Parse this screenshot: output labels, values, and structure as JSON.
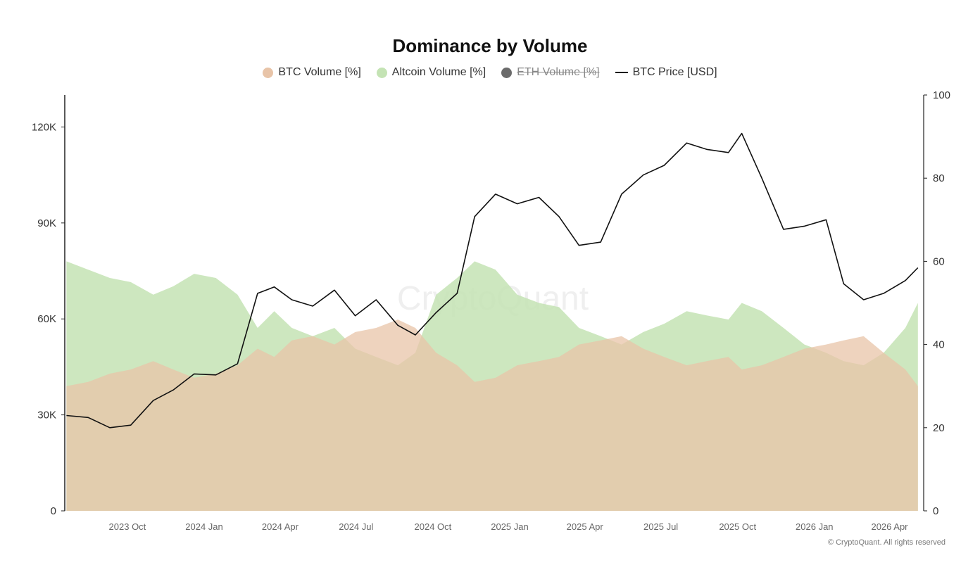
{
  "chart_data": {
    "type": "area",
    "title": "Dominance by Volume",
    "watermark": "CryptoQuant",
    "credit": "© CryptoQuant. All rights reserved",
    "legend": [
      {
        "key": "btc_volume",
        "label": "BTC Volume [%]",
        "color": "#e8c4a8",
        "hidden": false
      },
      {
        "key": "altcoin_volume",
        "label": "Altcoin Volume [%]",
        "color": "#c4e3b4",
        "hidden": false
      },
      {
        "key": "eth_volume",
        "label": "ETH Volume [%]",
        "color": "#6b6b6b",
        "hidden": true
      },
      {
        "key": "btc_price",
        "label": "BTC Price [USD]",
        "color": "#111111",
        "hidden": false
      }
    ],
    "left_axis": {
      "ylim": [
        0,
        130000
      ],
      "ticks": [
        0,
        30000,
        60000,
        90000,
        120000
      ],
      "tick_labels": [
        "0",
        "30K",
        "60K",
        "90K",
        "120K"
      ]
    },
    "right_axis": {
      "ylim": [
        0,
        100
      ],
      "ticks": [
        0,
        20,
        40,
        60,
        80,
        100
      ],
      "tick_labels": [
        "0",
        "20",
        "40",
        "60",
        "80",
        "100"
      ]
    },
    "x_axis": {
      "xlim": [
        "2023-07-18",
        "2026-05-06"
      ],
      "ticks": [
        "2023-10-01",
        "2024-01-01",
        "2024-04-01",
        "2024-07-01",
        "2024-10-01",
        "2025-01-01",
        "2025-04-01",
        "2025-07-01",
        "2025-10-01",
        "2026-01-01",
        "2026-04-01"
      ],
      "tick_labels": [
        "2023 Oct",
        "2024 Jan",
        "2024 Apr",
        "2024 Jul",
        "2024 Oct",
        "2025 Jan",
        "2025 Apr",
        "2025 Jul",
        "2025 Oct",
        "2026 Jan",
        "2026 Apr"
      ]
    },
    "x": [
      "2023-07-20",
      "2023-08-15",
      "2023-09-10",
      "2023-10-05",
      "2023-11-01",
      "2023-11-25",
      "2023-12-20",
      "2024-01-15",
      "2024-02-10",
      "2024-03-05",
      "2024-03-25",
      "2024-04-15",
      "2024-05-10",
      "2024-06-05",
      "2024-06-30",
      "2024-07-25",
      "2024-08-20",
      "2024-09-10",
      "2024-10-05",
      "2024-10-30",
      "2024-11-20",
      "2024-12-15",
      "2025-01-10",
      "2025-02-05",
      "2025-03-01",
      "2025-03-25",
      "2025-04-20",
      "2025-05-15",
      "2025-06-10",
      "2025-07-05",
      "2025-08-01",
      "2025-08-25",
      "2025-09-20",
      "2025-10-06",
      "2025-10-30",
      "2025-11-25",
      "2025-12-20",
      "2026-01-15",
      "2026-02-05",
      "2026-03-01",
      "2026-03-25",
      "2026-04-20",
      "2026-05-05"
    ],
    "series": [
      {
        "name": "BTC Price [USD]",
        "axis": "left",
        "values": [
          29800,
          29200,
          26000,
          26800,
          34500,
          37800,
          42800,
          42500,
          46000,
          68000,
          70000,
          66000,
          64000,
          69000,
          61000,
          66000,
          58000,
          55000,
          62000,
          68000,
          92000,
          99000,
          96000,
          98000,
          92000,
          83000,
          84000,
          99000,
          105000,
          108000,
          115000,
          113000,
          112000,
          118000,
          104000,
          88000,
          89000,
          91000,
          71000,
          66000,
          68000,
          72000,
          76000
        ]
      },
      {
        "name": "Altcoin Volume [%]",
        "axis": "right",
        "values": [
          60,
          58,
          56,
          55,
          52,
          54,
          57,
          56,
          52,
          44,
          48,
          44,
          42,
          44,
          39,
          37,
          35,
          38,
          52,
          56,
          60,
          58,
          52,
          50,
          49,
          44,
          42,
          40,
          43,
          45,
          48,
          47,
          46,
          50,
          48,
          44,
          40,
          38,
          36,
          35,
          38,
          44,
          50
        ]
      },
      {
        "name": "BTC Volume [%]",
        "axis": "right",
        "values": [
          30,
          31,
          33,
          34,
          36,
          34,
          32,
          33,
          35,
          39,
          37,
          41,
          42,
          40,
          43,
          44,
          46,
          44,
          38,
          35,
          31,
          32,
          35,
          36,
          37,
          40,
          41,
          42,
          39,
          37,
          35,
          36,
          37,
          34,
          35,
          37,
          39,
          40,
          41,
          42,
          38,
          34,
          30
        ]
      }
    ]
  }
}
